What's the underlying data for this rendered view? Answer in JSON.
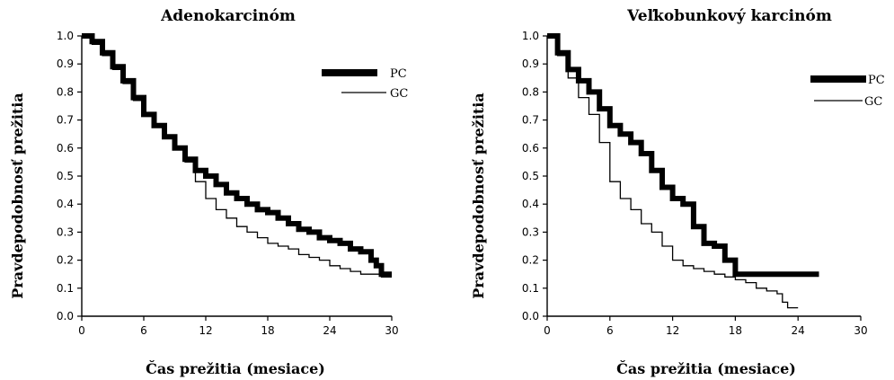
{
  "chart_data": [
    {
      "type": "line",
      "title": "Adenokarcinóm",
      "xlabel": "Čas prežitia (mesiace)",
      "ylabel": "Pravdepodobnosť prežitia",
      "xlim": [
        0,
        30
      ],
      "ylim": [
        0,
        1
      ],
      "x_ticks": [
        "0",
        "6",
        "12",
        "18",
        "24",
        "30"
      ],
      "y_ticks": [
        "0.0",
        "0.1",
        "0.2",
        "0.3",
        "0.4",
        "0.5",
        "0.6",
        "0.7",
        "0.8",
        "0.9",
        "1.0"
      ],
      "legend_position": "top-right",
      "series": [
        {
          "name": "PC",
          "style": "thick",
          "x": [
            0,
            1,
            2,
            3,
            4,
            5,
            6,
            7,
            8,
            9,
            10,
            11,
            12,
            13,
            14,
            15,
            16,
            17,
            18,
            19,
            20,
            21,
            22,
            23,
            24,
            25,
            26,
            27,
            28,
            28.5,
            29,
            30
          ],
          "y": [
            1.0,
            0.98,
            0.94,
            0.89,
            0.84,
            0.78,
            0.72,
            0.68,
            0.64,
            0.6,
            0.56,
            0.52,
            0.5,
            0.47,
            0.44,
            0.42,
            0.4,
            0.38,
            0.37,
            0.35,
            0.33,
            0.31,
            0.3,
            0.28,
            0.27,
            0.26,
            0.24,
            0.23,
            0.2,
            0.18,
            0.15,
            0.15
          ]
        },
        {
          "name": "GC",
          "style": "thin",
          "x": [
            0,
            1,
            2,
            3,
            4,
            5,
            6,
            7,
            8,
            9,
            10,
            11,
            12,
            13,
            14,
            15,
            16,
            17,
            18,
            19,
            20,
            21,
            22,
            23,
            24,
            25,
            26,
            27,
            28,
            29,
            30
          ],
          "y": [
            1.0,
            0.97,
            0.93,
            0.88,
            0.83,
            0.77,
            0.72,
            0.68,
            0.64,
            0.6,
            0.55,
            0.48,
            0.42,
            0.38,
            0.35,
            0.32,
            0.3,
            0.28,
            0.26,
            0.25,
            0.24,
            0.22,
            0.21,
            0.2,
            0.18,
            0.17,
            0.16,
            0.15,
            0.15,
            0.14,
            0.14
          ]
        }
      ]
    },
    {
      "type": "line",
      "title": "Veľkobunkový karcinóm",
      "xlabel": "Čas prežitia (mesiace)",
      "ylabel": "Pravdepodobnosť prežitia",
      "xlim": [
        0,
        30
      ],
      "ylim": [
        0,
        1
      ],
      "x_ticks": [
        "0",
        "6",
        "12",
        "18",
        "24",
        "30"
      ],
      "y_ticks": [
        "0.0",
        "0.1",
        "0.2",
        "0.3",
        "0.4",
        "0.5",
        "0.6",
        "0.7",
        "0.8",
        "0.9",
        "1.0"
      ],
      "legend_position": "top-right",
      "series": [
        {
          "name": "PC",
          "style": "thick",
          "x": [
            0,
            1,
            2,
            3,
            4,
            5,
            6,
            7,
            8,
            9,
            10,
            11,
            12,
            13,
            14,
            15,
            16,
            17,
            18,
            19,
            20,
            22,
            24,
            26
          ],
          "y": [
            1.0,
            0.94,
            0.88,
            0.84,
            0.8,
            0.74,
            0.68,
            0.65,
            0.62,
            0.58,
            0.52,
            0.46,
            0.42,
            0.4,
            0.32,
            0.26,
            0.25,
            0.2,
            0.15,
            0.15,
            0.15,
            0.15,
            0.15,
            0.15
          ]
        },
        {
          "name": "GC",
          "style": "thin",
          "x": [
            0,
            1,
            2,
            3,
            4,
            5,
            6,
            7,
            8,
            9,
            10,
            11,
            12,
            13,
            14,
            15,
            16,
            17,
            18,
            19,
            20,
            21,
            22,
            22.5,
            23,
            24
          ],
          "y": [
            1.0,
            0.93,
            0.85,
            0.78,
            0.72,
            0.62,
            0.48,
            0.42,
            0.38,
            0.33,
            0.3,
            0.25,
            0.2,
            0.18,
            0.17,
            0.16,
            0.15,
            0.14,
            0.13,
            0.12,
            0.1,
            0.09,
            0.08,
            0.05,
            0.03,
            0.03
          ]
        }
      ]
    }
  ]
}
